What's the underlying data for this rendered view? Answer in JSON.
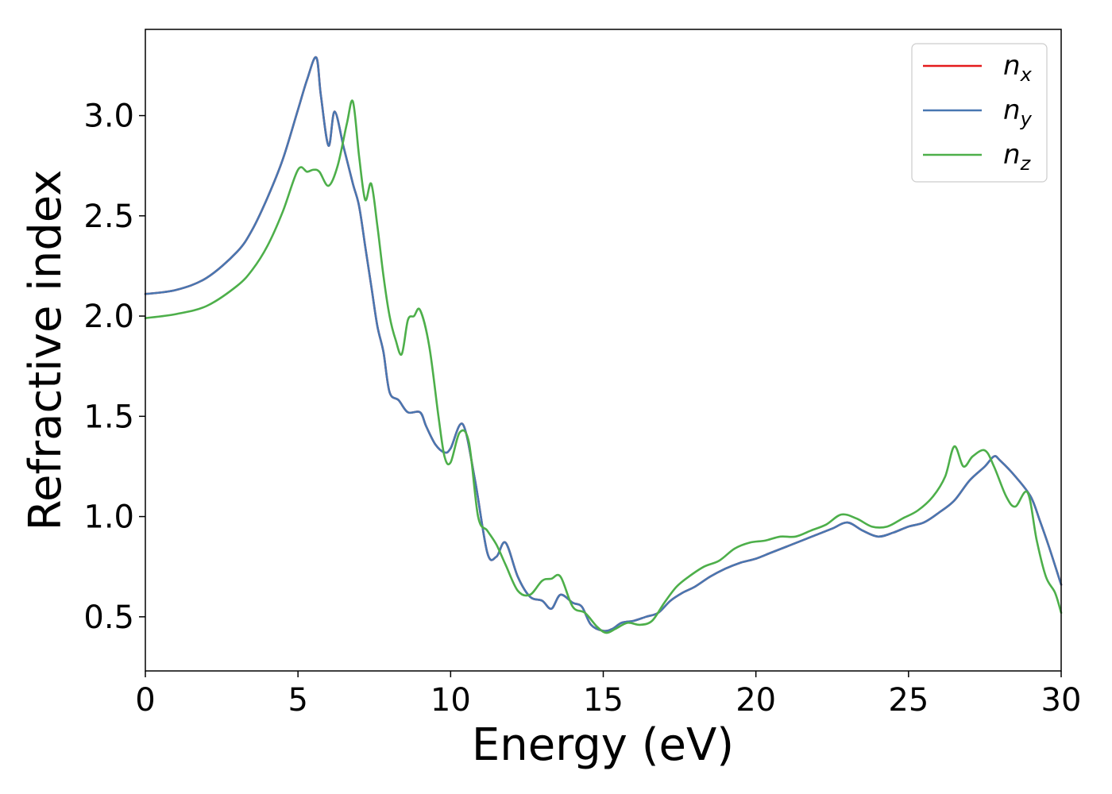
{
  "chart_data": {
    "type": "line",
    "xlabel": "Energy (eV)",
    "ylabel": "Refractive index",
    "xlim": [
      0,
      30
    ],
    "ylim": [
      0.23,
      3.43
    ],
    "xticks": [
      0,
      5,
      10,
      15,
      20,
      25,
      30
    ],
    "xtick_labels": [
      "0",
      "5",
      "10",
      "15",
      "20",
      "25",
      "30"
    ],
    "yticks": [
      0.5,
      1.0,
      1.5,
      2.0,
      2.5,
      3.0
    ],
    "ytick_labels": [
      "0.5",
      "1.0",
      "1.5",
      "2.0",
      "2.5",
      "3.0"
    ],
    "grid": false,
    "legend_position": "top-right",
    "series": [
      {
        "name": "n_x",
        "label_base": "n",
        "label_sub": "x",
        "color": "#e41a1c",
        "x": [
          0,
          1,
          2,
          3,
          3.5,
          4,
          4.5,
          5,
          5.3,
          5.6,
          5.75,
          6,
          6.2,
          6.5,
          6.8,
          7,
          7.2,
          7.4,
          7.6,
          7.8,
          8,
          8.3,
          8.6,
          9,
          9.2,
          9.5,
          9.8,
          10,
          10.4,
          10.8,
          11.2,
          11.5,
          11.8,
          12.2,
          12.6,
          13,
          13.3,
          13.6,
          14,
          14.3,
          14.6,
          15,
          15.3,
          15.6,
          16,
          16.4,
          16.8,
          17.2,
          17.6,
          18,
          18.5,
          19,
          19.5,
          20,
          20.5,
          21,
          21.5,
          22,
          22.5,
          23,
          23.5,
          24,
          24.5,
          25,
          25.5,
          26,
          26.5,
          27,
          27.5,
          27.8,
          28,
          28.5,
          29,
          29.3,
          29.6,
          30
        ],
        "y": [
          2.11,
          2.13,
          2.19,
          2.32,
          2.43,
          2.59,
          2.78,
          3.03,
          3.18,
          3.29,
          3.1,
          2.85,
          3.02,
          2.84,
          2.66,
          2.55,
          2.35,
          2.15,
          1.95,
          1.82,
          1.62,
          1.58,
          1.52,
          1.52,
          1.45,
          1.36,
          1.32,
          1.34,
          1.46,
          1.18,
          0.82,
          0.8,
          0.87,
          0.7,
          0.6,
          0.58,
          0.54,
          0.61,
          0.57,
          0.55,
          0.46,
          0.43,
          0.44,
          0.47,
          0.48,
          0.5,
          0.52,
          0.58,
          0.62,
          0.65,
          0.7,
          0.74,
          0.77,
          0.79,
          0.82,
          0.85,
          0.88,
          0.91,
          0.94,
          0.97,
          0.93,
          0.9,
          0.92,
          0.95,
          0.97,
          1.02,
          1.08,
          1.18,
          1.25,
          1.3,
          1.28,
          1.2,
          1.1,
          0.98,
          0.85,
          0.66
        ]
      },
      {
        "name": "n_y",
        "label_base": "n",
        "label_sub": "y",
        "color": "#4877b1",
        "x": [
          0,
          1,
          2,
          3,
          3.5,
          4,
          4.5,
          5,
          5.3,
          5.6,
          5.75,
          6,
          6.2,
          6.5,
          6.8,
          7,
          7.2,
          7.4,
          7.6,
          7.8,
          8,
          8.3,
          8.6,
          9,
          9.2,
          9.5,
          9.8,
          10,
          10.4,
          10.8,
          11.2,
          11.5,
          11.8,
          12.2,
          12.6,
          13,
          13.3,
          13.6,
          14,
          14.3,
          14.6,
          15,
          15.3,
          15.6,
          16,
          16.4,
          16.8,
          17.2,
          17.6,
          18,
          18.5,
          19,
          19.5,
          20,
          20.5,
          21,
          21.5,
          22,
          22.5,
          23,
          23.5,
          24,
          24.5,
          25,
          25.5,
          26,
          26.5,
          27,
          27.5,
          27.8,
          28,
          28.5,
          29,
          29.3,
          29.6,
          30
        ],
        "y": [
          2.11,
          2.13,
          2.19,
          2.32,
          2.43,
          2.59,
          2.78,
          3.03,
          3.18,
          3.29,
          3.1,
          2.85,
          3.02,
          2.84,
          2.66,
          2.55,
          2.35,
          2.15,
          1.95,
          1.82,
          1.62,
          1.58,
          1.52,
          1.52,
          1.45,
          1.36,
          1.32,
          1.34,
          1.46,
          1.18,
          0.82,
          0.8,
          0.87,
          0.7,
          0.6,
          0.58,
          0.54,
          0.61,
          0.57,
          0.55,
          0.46,
          0.43,
          0.44,
          0.47,
          0.48,
          0.5,
          0.52,
          0.58,
          0.62,
          0.65,
          0.7,
          0.74,
          0.77,
          0.79,
          0.82,
          0.85,
          0.88,
          0.91,
          0.94,
          0.97,
          0.93,
          0.9,
          0.92,
          0.95,
          0.97,
          1.02,
          1.08,
          1.18,
          1.25,
          1.3,
          1.28,
          1.2,
          1.1,
          0.98,
          0.85,
          0.66
        ]
      },
      {
        "name": "n_z",
        "label_base": "n",
        "label_sub": "z",
        "color": "#4daf4a",
        "x": [
          0,
          1,
          2,
          3,
          3.5,
          4,
          4.5,
          5,
          5.3,
          5.5,
          5.7,
          6,
          6.3,
          6.6,
          6.8,
          7,
          7.2,
          7.4,
          7.6,
          7.8,
          8,
          8.2,
          8.4,
          8.6,
          8.8,
          9,
          9.3,
          9.6,
          9.8,
          10,
          10.3,
          10.6,
          10.9,
          11.2,
          11.5,
          11.8,
          12.2,
          12.6,
          13,
          13.3,
          13.6,
          14,
          14.4,
          14.8,
          15.1,
          15.4,
          15.8,
          16.2,
          16.6,
          17,
          17.4,
          17.8,
          18.3,
          18.8,
          19.3,
          19.8,
          20.3,
          20.8,
          21.3,
          21.8,
          22.3,
          22.8,
          23.3,
          23.8,
          24.3,
          24.8,
          25.3,
          25.8,
          26.2,
          26.5,
          26.8,
          27.1,
          27.5,
          27.8,
          28.2,
          28.5,
          28.9,
          29.2,
          29.5,
          29.8,
          30
        ],
        "y": [
          1.99,
          2.01,
          2.05,
          2.15,
          2.23,
          2.35,
          2.52,
          2.73,
          2.72,
          2.73,
          2.72,
          2.65,
          2.75,
          2.96,
          3.07,
          2.8,
          2.58,
          2.66,
          2.45,
          2.2,
          2.0,
          1.88,
          1.81,
          1.98,
          2.0,
          2.03,
          1.85,
          1.5,
          1.3,
          1.27,
          1.42,
          1.37,
          1.0,
          0.93,
          0.86,
          0.76,
          0.63,
          0.61,
          0.68,
          0.69,
          0.7,
          0.55,
          0.52,
          0.45,
          0.42,
          0.44,
          0.47,
          0.46,
          0.48,
          0.57,
          0.65,
          0.7,
          0.75,
          0.78,
          0.84,
          0.87,
          0.88,
          0.9,
          0.9,
          0.93,
          0.96,
          1.01,
          0.99,
          0.95,
          0.95,
          0.99,
          1.03,
          1.1,
          1.2,
          1.35,
          1.25,
          1.3,
          1.33,
          1.25,
          1.1,
          1.05,
          1.12,
          0.88,
          0.7,
          0.62,
          0.52
        ]
      }
    ]
  }
}
